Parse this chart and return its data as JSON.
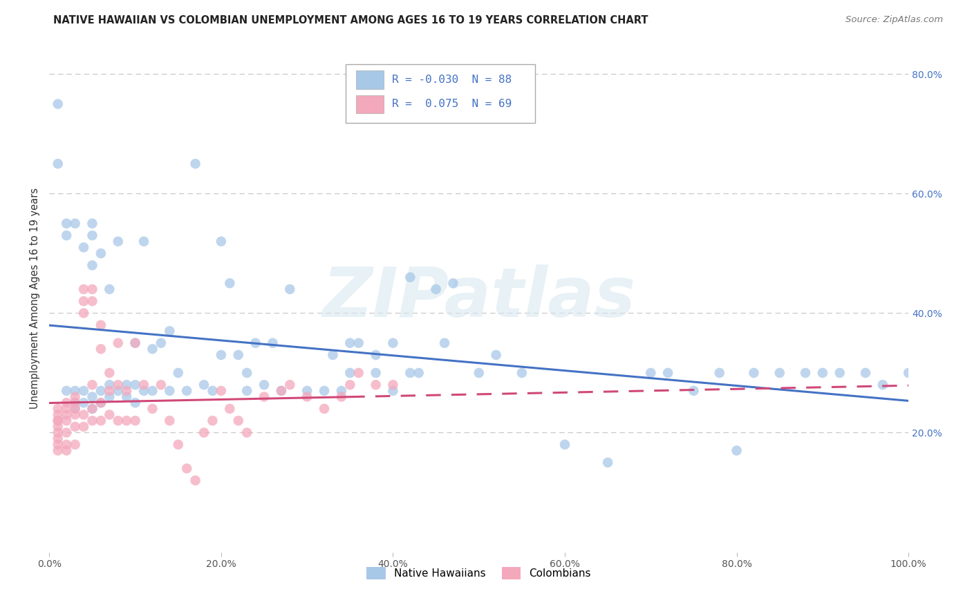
{
  "title": "NATIVE HAWAIIAN VS COLOMBIAN UNEMPLOYMENT AMONG AGES 16 TO 19 YEARS CORRELATION CHART",
  "source": "Source: ZipAtlas.com",
  "ylabel": "Unemployment Among Ages 16 to 19 years",
  "xlim": [
    0.0,
    1.0
  ],
  "ylim": [
    0.0,
    0.85
  ],
  "ytick_values": [
    0.2,
    0.4,
    0.6,
    0.8
  ],
  "ytick_labels": [
    "20.0%",
    "40.0%",
    "60.0%",
    "80.0%"
  ],
  "xtick_values": [
    0.0,
    0.2,
    0.4,
    0.6,
    0.8,
    1.0
  ],
  "xtick_labels": [
    "0.0%",
    "20.0%",
    "40.0%",
    "60.0%",
    "80.0%",
    "100.0%"
  ],
  "legend_labels": [
    "Native Hawaiians",
    "Colombians"
  ],
  "r_native": -0.03,
  "n_native": 88,
  "r_colombian": 0.075,
  "n_colombian": 69,
  "color_native": "#a8c8e8",
  "color_colombian": "#f4a8bc",
  "trendline_color_native": "#4472c4",
  "trendline_color_colombian": "#d04878",
  "background_color": "#ffffff",
  "grid_color": "#c8c8c8",
  "watermark": "ZIPatlas",
  "nh_x": [
    0.01,
    0.01,
    0.02,
    0.02,
    0.02,
    0.03,
    0.03,
    0.03,
    0.03,
    0.04,
    0.04,
    0.04,
    0.05,
    0.05,
    0.05,
    0.05,
    0.05,
    0.06,
    0.06,
    0.06,
    0.07,
    0.07,
    0.07,
    0.08,
    0.08,
    0.09,
    0.09,
    0.1,
    0.1,
    0.1,
    0.11,
    0.11,
    0.12,
    0.12,
    0.13,
    0.14,
    0.14,
    0.15,
    0.16,
    0.17,
    0.18,
    0.19,
    0.2,
    0.2,
    0.21,
    0.22,
    0.23,
    0.23,
    0.24,
    0.25,
    0.26,
    0.27,
    0.28,
    0.3,
    0.32,
    0.33,
    0.34,
    0.35,
    0.38,
    0.4,
    0.4,
    0.42,
    0.43,
    0.45,
    0.46,
    0.47,
    0.5,
    0.52,
    0.55,
    0.6,
    0.65,
    0.7,
    0.72,
    0.75,
    0.78,
    0.8,
    0.82,
    0.85,
    0.88,
    0.9,
    0.92,
    0.95,
    0.97,
    1.0,
    0.35,
    0.36,
    0.38,
    0.42
  ],
  "nh_y": [
    0.75,
    0.65,
    0.55,
    0.53,
    0.27,
    0.55,
    0.27,
    0.25,
    0.24,
    0.51,
    0.27,
    0.25,
    0.55,
    0.53,
    0.48,
    0.26,
    0.24,
    0.5,
    0.27,
    0.25,
    0.44,
    0.28,
    0.26,
    0.52,
    0.27,
    0.28,
    0.26,
    0.35,
    0.28,
    0.25,
    0.52,
    0.27,
    0.34,
    0.27,
    0.35,
    0.37,
    0.27,
    0.3,
    0.27,
    0.65,
    0.28,
    0.27,
    0.52,
    0.33,
    0.45,
    0.33,
    0.3,
    0.27,
    0.35,
    0.28,
    0.35,
    0.27,
    0.44,
    0.27,
    0.27,
    0.33,
    0.27,
    0.3,
    0.33,
    0.35,
    0.27,
    0.46,
    0.3,
    0.44,
    0.35,
    0.45,
    0.3,
    0.33,
    0.3,
    0.18,
    0.15,
    0.3,
    0.3,
    0.27,
    0.3,
    0.17,
    0.3,
    0.3,
    0.3,
    0.3,
    0.3,
    0.3,
    0.28,
    0.3,
    0.35,
    0.35,
    0.3,
    0.3
  ],
  "co_x": [
    0.01,
    0.01,
    0.01,
    0.01,
    0.01,
    0.01,
    0.01,
    0.01,
    0.01,
    0.02,
    0.02,
    0.02,
    0.02,
    0.02,
    0.02,
    0.02,
    0.03,
    0.03,
    0.03,
    0.03,
    0.03,
    0.03,
    0.04,
    0.04,
    0.04,
    0.04,
    0.04,
    0.05,
    0.05,
    0.05,
    0.05,
    0.05,
    0.06,
    0.06,
    0.06,
    0.06,
    0.07,
    0.07,
    0.07,
    0.08,
    0.08,
    0.08,
    0.09,
    0.09,
    0.1,
    0.1,
    0.11,
    0.12,
    0.13,
    0.14,
    0.15,
    0.16,
    0.17,
    0.18,
    0.19,
    0.2,
    0.21,
    0.22,
    0.23,
    0.25,
    0.27,
    0.28,
    0.3,
    0.32,
    0.34,
    0.35,
    0.36,
    0.38,
    0.4
  ],
  "co_y": [
    0.24,
    0.23,
    0.22,
    0.22,
    0.21,
    0.2,
    0.19,
    0.18,
    0.17,
    0.25,
    0.24,
    0.23,
    0.22,
    0.2,
    0.18,
    0.17,
    0.26,
    0.25,
    0.24,
    0.23,
    0.21,
    0.18,
    0.44,
    0.42,
    0.4,
    0.23,
    0.21,
    0.44,
    0.42,
    0.28,
    0.24,
    0.22,
    0.38,
    0.34,
    0.25,
    0.22,
    0.3,
    0.27,
    0.23,
    0.35,
    0.28,
    0.22,
    0.27,
    0.22,
    0.35,
    0.22,
    0.28,
    0.24,
    0.28,
    0.22,
    0.18,
    0.14,
    0.12,
    0.2,
    0.22,
    0.27,
    0.24,
    0.22,
    0.2,
    0.26,
    0.27,
    0.28,
    0.26,
    0.24,
    0.26,
    0.28,
    0.3,
    0.28,
    0.28
  ]
}
